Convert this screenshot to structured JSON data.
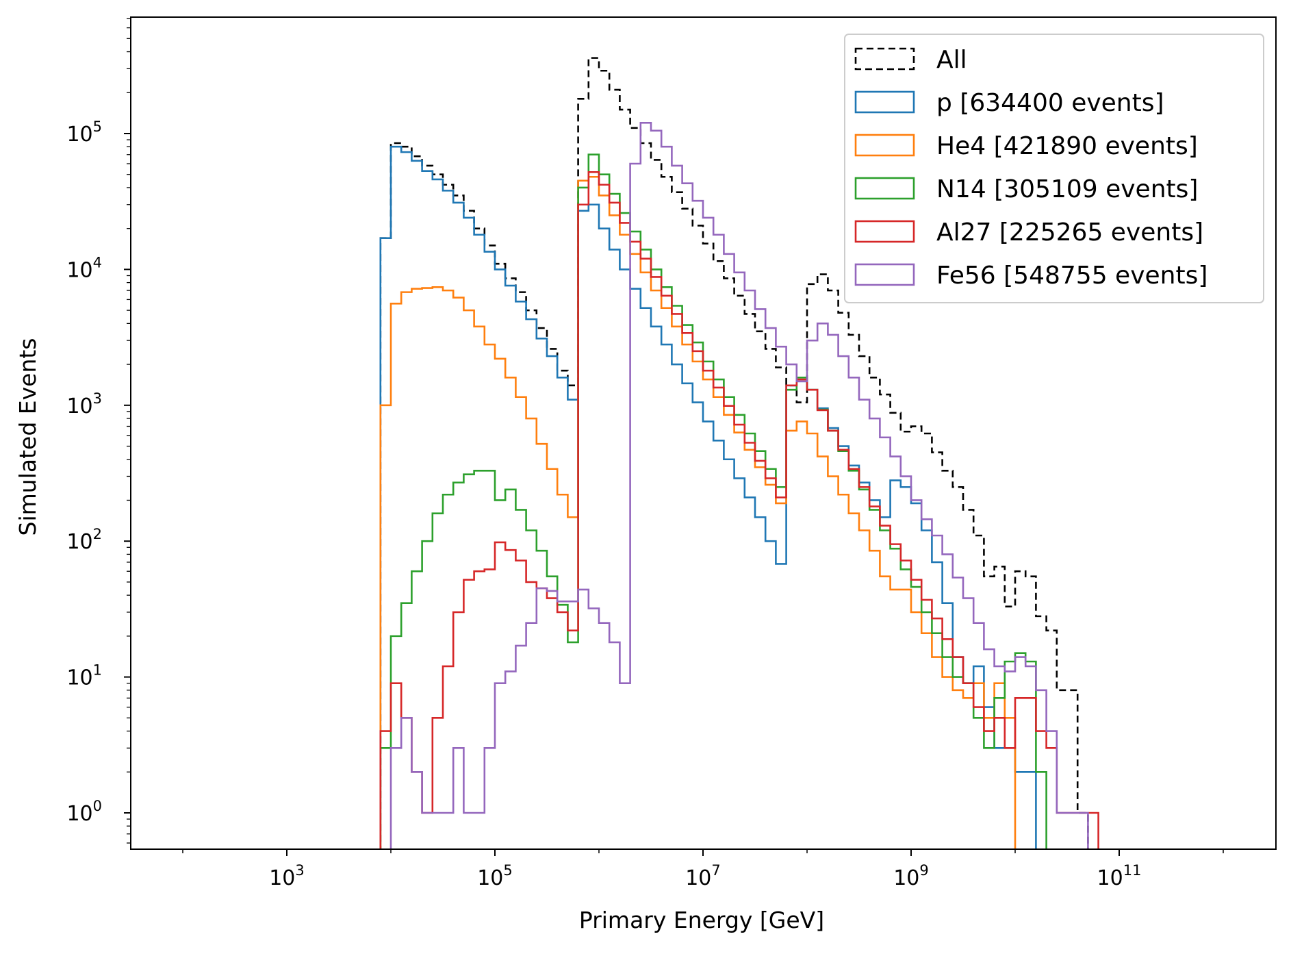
{
  "chart_data": {
    "type": "histogram-step",
    "xlabel": "Primary Energy [GeV]",
    "ylabel": "Simulated Events",
    "xscale": "log",
    "yscale": "log",
    "xlim_log10": [
      1.5,
      12.5
    ],
    "ylim_log10": [
      -0.27,
      0.0
    ],
    "x_ticks": [
      {
        "base": "10",
        "exp": "3",
        "value_log10": 3
      },
      {
        "base": "10",
        "exp": "5",
        "value_log10": 5
      },
      {
        "base": "10",
        "exp": "7",
        "value_log10": 7
      },
      {
        "base": "10",
        "exp": "9",
        "value_log10": 9
      },
      {
        "base": "10",
        "exp": "11",
        "value_log10": 11
      }
    ],
    "y_ticks": [
      {
        "base": "10",
        "exp": "0",
        "value_log10": 0
      },
      {
        "base": "10",
        "exp": "1",
        "value_log10": 1
      },
      {
        "base": "10",
        "exp": "2",
        "value_log10": 2
      },
      {
        "base": "10",
        "exp": "3",
        "value_log10": 3
      },
      {
        "base": "10",
        "exp": "4",
        "value_log10": 4
      },
      {
        "base": "10",
        "exp": "5",
        "value_log10": 5
      }
    ],
    "bin_start_log10": 3.9,
    "bin_width_log10": 0.1,
    "legend": {
      "placement": "upper right"
    },
    "series": [
      {
        "name": "All",
        "color": "#000000",
        "dashed": true,
        "values": [
          17000,
          85000,
          80000,
          68000,
          58000,
          50000,
          42000,
          35000,
          27000,
          20000,
          15000,
          11000,
          8600,
          6800,
          5000,
          3700,
          2600,
          1800,
          1400,
          180000,
          360000,
          290000,
          210000,
          150000,
          110000,
          85000,
          64000,
          48000,
          37000,
          28000,
          21000,
          15500,
          11500,
          8600,
          6400,
          4700,
          3500,
          2600,
          1900,
          1400,
          1050,
          7800,
          9200,
          7000,
          4800,
          3300,
          2300,
          1600,
          1200,
          880,
          640,
          700,
          620,
          450,
          330,
          250,
          170,
          110,
          55,
          65,
          33,
          60,
          55,
          28,
          22,
          8,
          8,
          1
        ]
      },
      {
        "name": "p [634400 events]",
        "color": "#1f77b4",
        "dashed": false,
        "values": [
          17000,
          80000,
          73000,
          63000,
          53000,
          46000,
          38000,
          31000,
          24000,
          18000,
          13500,
          10000,
          7600,
          5800,
          4300,
          3100,
          2300,
          1600,
          1100,
          27000,
          30000,
          20000,
          14000,
          10000,
          7200,
          5200,
          3800,
          2800,
          2000,
          1450,
          1050,
          760,
          550,
          400,
          290,
          210,
          150,
          100,
          68,
          1400,
          1500,
          1300,
          950,
          680,
          500,
          360,
          270,
          200,
          150,
          280,
          250,
          190,
          120,
          70,
          35,
          14,
          9,
          12,
          6,
          3,
          3,
          2,
          2
        ]
      },
      {
        "name": "He4 [421890 events]",
        "color": "#ff7f0e",
        "dashed": false,
        "values": [
          1000,
          5600,
          6800,
          7200,
          7300,
          7400,
          7000,
          6200,
          5000,
          3800,
          2800,
          2200,
          1600,
          1150,
          800,
          520,
          340,
          220,
          150,
          45000,
          48000,
          35000,
          25000,
          18000,
          13000,
          9500,
          7000,
          5200,
          3800,
          2800,
          2100,
          1550,
          1150,
          850,
          630,
          470,
          350,
          260,
          190,
          650,
          760,
          620,
          420,
          300,
          220,
          160,
          120,
          85,
          55,
          44,
          44,
          30,
          21,
          14,
          10,
          8,
          7,
          9,
          5,
          9,
          5
        ]
      },
      {
        "name": "N14 [305109 events]",
        "color": "#2ca02c",
        "dashed": false,
        "values": [
          3,
          20,
          35,
          60,
          100,
          160,
          220,
          270,
          310,
          330,
          330,
          200,
          240,
          170,
          120,
          85,
          55,
          34,
          18,
          40000,
          70000,
          50000,
          36000,
          26000,
          19000,
          14000,
          10000,
          7400,
          5400,
          3900,
          2900,
          2100,
          1550,
          1150,
          850,
          620,
          460,
          340,
          250,
          1300,
          1600,
          1300,
          930,
          650,
          460,
          330,
          240,
          170,
          120,
          88,
          62,
          46,
          30,
          21,
          14,
          10,
          9,
          5,
          3,
          7,
          13,
          15,
          13,
          2
        ]
      },
      {
        "name": "Al27 [225265 events]",
        "color": "#d62728",
        "dashed": false,
        "values": [
          4,
          9,
          5,
          2,
          1,
          5,
          12,
          30,
          52,
          60,
          62,
          98,
          86,
          72,
          50,
          45,
          38,
          30,
          22,
          30000,
          52000,
          42000,
          31000,
          22000,
          16000,
          12000,
          8800,
          6400,
          4700,
          3400,
          2500,
          1800,
          1350,
          990,
          720,
          530,
          390,
          290,
          210,
          1400,
          1550,
          1300,
          920,
          650,
          470,
          340,
          250,
          180,
          130,
          95,
          72,
          52,
          37,
          27,
          19,
          14,
          9,
          6,
          4,
          5,
          3,
          7,
          7,
          4,
          3,
          1,
          1,
          1,
          1
        ]
      },
      {
        "name": "Fe56 [548755 events]",
        "color": "#9467bd",
        "dashed": false,
        "values": [
          0.5,
          3,
          5,
          2,
          1,
          1,
          1,
          3,
          1,
          1,
          3,
          9,
          11,
          17,
          25,
          45,
          43,
          36,
          36,
          44,
          32,
          25,
          18,
          9,
          60000,
          120000,
          105000,
          80000,
          58000,
          43000,
          32000,
          24000,
          18000,
          13000,
          9500,
          7000,
          5100,
          3700,
          2700,
          2000,
          1500,
          3000,
          4000,
          3300,
          2300,
          1600,
          1100,
          800,
          580,
          420,
          300,
          200,
          145,
          110,
          80,
          54,
          38,
          25,
          16,
          12,
          11,
          14,
          12,
          8,
          4,
          1,
          1,
          1
        ]
      }
    ]
  }
}
